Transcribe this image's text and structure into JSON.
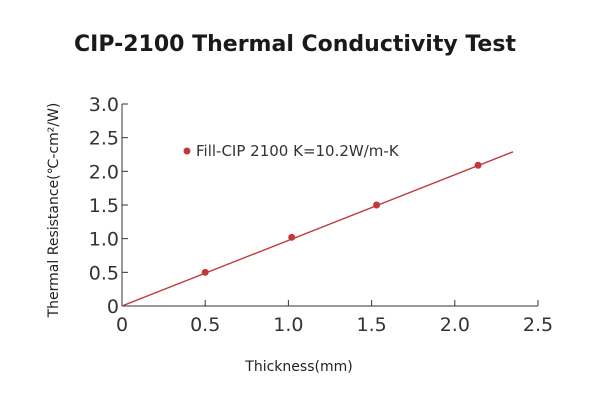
{
  "chart_data": {
    "type": "line",
    "title": "CIP-2100 Thermal Conductivity Test",
    "xlabel": "Thickness(mm)",
    "ylabel": "Thermal Resistance(℃-cm²/W)",
    "xlim": [
      0,
      2.5
    ],
    "ylim": [
      0,
      3.0
    ],
    "x_ticks": [
      "0",
      "0.5",
      "1.0",
      "1.5",
      "2.0",
      "2.5"
    ],
    "y_ticks": [
      "0",
      "0.5",
      "1.0",
      "1.5",
      "2.0",
      "2.5",
      "3.0"
    ],
    "x_tick_values": [
      0,
      0.5,
      1.0,
      1.5,
      2.0,
      2.5
    ],
    "y_tick_values": [
      0,
      0.5,
      1.0,
      1.5,
      2.0,
      2.5,
      3.0
    ],
    "series": [
      {
        "name": "Fill-CIP 2100 K=10.2W/m-K",
        "color": "#c0393b",
        "points": [
          {
            "x": 0.5,
            "y": 0.5
          },
          {
            "x": 1.02,
            "y": 1.02
          },
          {
            "x": 1.53,
            "y": 1.5
          },
          {
            "x": 2.14,
            "y": 2.09
          }
        ],
        "fit_line": {
          "x": [
            0,
            2.35
          ],
          "y": [
            0,
            2.29
          ]
        }
      }
    ],
    "grid": false,
    "legend_position": "top-center"
  }
}
